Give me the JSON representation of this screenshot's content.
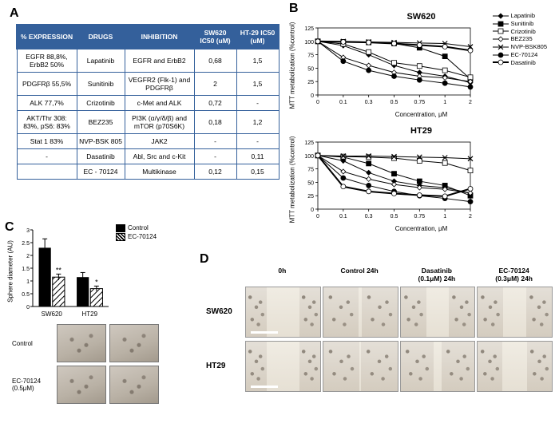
{
  "labels": {
    "A": "A",
    "B": "B",
    "C": "C",
    "D": "D"
  },
  "tableA": {
    "headers": [
      "% EXPRESSION",
      "DRUGS",
      "INHIBITION",
      "SW620 IC50 (uM)",
      "HT-29 IC50 (uM)"
    ],
    "rows": [
      [
        "EGFR 88,8%, ErbB2 50%",
        "Lapatinib",
        "EGFR and ErbB2",
        "0,68",
        "1,5"
      ],
      [
        "PDGFRβ 55,5%",
        "Sunitinib",
        "VEGFR2 (Flk-1) and PDGFRβ",
        "2",
        "1,5"
      ],
      [
        "ALK 77,7%",
        "Crizotinib",
        "c-Met and ALK",
        "0,72",
        "-"
      ],
      [
        "AKT/Thr 308: 83%, pS6: 83%",
        "BEZ235",
        "PI3K (α/γ/δ/β) and mTOR (p70S6K)",
        "0,18",
        "1,2"
      ],
      [
        "Stat 1 83%",
        "NVP-BSK 805",
        "JAK2",
        "-",
        "-"
      ],
      [
        "-",
        "Dasatinib",
        "Abl, Src and c-Kit",
        "-",
        "0,11"
      ],
      [
        "",
        "EC - 70124",
        "Multikinase",
        "0,12",
        "0,15"
      ]
    ],
    "header_bg": "#34609b",
    "header_color": "#ffffff",
    "border_color": "#34609b",
    "font_size": 8.5
  },
  "chartsB": {
    "x_label": "Concentration, μM",
    "y_label": "MTT metabolization (%control)",
    "concentrations": [
      0,
      0.1,
      0.3,
      0.5,
      0.75,
      1,
      2
    ],
    "ylim": [
      0,
      125
    ],
    "ytick_step": 25,
    "drugs": [
      {
        "name": "Lapatinib",
        "marker": "diamond",
        "fill": "#000000"
      },
      {
        "name": "Sunitinib",
        "marker": "square",
        "fill": "#000000"
      },
      {
        "name": "Crizotinib",
        "marker": "square",
        "fill": "#ffffff"
      },
      {
        "name": "BEZ235",
        "marker": "diamond",
        "fill": "#ffffff"
      },
      {
        "name": "NVP-BSK805",
        "marker": "cross",
        "fill": "#000000"
      },
      {
        "name": "EC-70124",
        "marker": "circle",
        "fill": "#000000"
      },
      {
        "name": "Dasatinib",
        "marker": "circle",
        "fill": "#ffffff",
        "thick": true
      }
    ],
    "SW620": {
      "title": "SW620",
      "series": {
        "Lapatinib": [
          100,
          92,
          75,
          55,
          42,
          35,
          23
        ],
        "Sunitinib": [
          100,
          99,
          98,
          96,
          88,
          72,
          30
        ],
        "Crizotinib": [
          100,
          95,
          80,
          60,
          54,
          46,
          33
        ],
        "BEZ235": [
          100,
          70,
          55,
          42,
          35,
          32,
          25
        ],
        "NVP-BSK805": [
          100,
          100,
          99,
          98,
          97,
          96,
          90
        ],
        "EC-70124": [
          100,
          63,
          46,
          35,
          28,
          22,
          15
        ],
        "Dasatinib": [
          100,
          99,
          98,
          96,
          93,
          90,
          83
        ]
      }
    },
    "HT29": {
      "title": "HT29",
      "series": {
        "Lapatinib": [
          100,
          90,
          68,
          52,
          44,
          40,
          30
        ],
        "Sunitinib": [
          100,
          97,
          85,
          66,
          52,
          44,
          25
        ],
        "Crizotinib": [
          100,
          98,
          97,
          95,
          90,
          86,
          72
        ],
        "BEZ235": [
          100,
          70,
          56,
          46,
          40,
          37,
          30
        ],
        "NVP-BSK805": [
          100,
          99,
          99,
          98,
          97,
          96,
          94
        ],
        "EC-70124": [
          100,
          58,
          44,
          33,
          25,
          20,
          14
        ],
        "Dasatinib": [
          100,
          42,
          33,
          29,
          26,
          24,
          38
        ]
      }
    }
  },
  "panelC": {
    "y_label": "Sphere diameter (AU)",
    "categories": [
      "SW620",
      "HT29"
    ],
    "legend": {
      "control": "Control",
      "treated": "EC-70124"
    },
    "control": {
      "values": [
        2.3,
        1.15
      ],
      "err": [
        0.35,
        0.18
      ],
      "color": "#000000"
    },
    "treated": {
      "values": [
        1.15,
        0.7
      ],
      "err": [
        0.12,
        0.1
      ],
      "hatch": true
    },
    "sig": [
      "**",
      "*"
    ],
    "ylim": [
      0,
      3
    ],
    "ytick_step": 0.5,
    "thumb_row_labels": [
      "Control",
      "EC-70124 (0.5μM)"
    ]
  },
  "panelD": {
    "col_labels": [
      "0h",
      "Control 24h",
      "Dasatinib (0.1μM) 24h",
      "EC-70124 (0.3μM) 24h"
    ],
    "row_labels": [
      "SW620",
      "HT29"
    ],
    "gap_fraction": {
      "SW620": [
        0.45,
        0.05,
        0.3,
        0.32
      ],
      "HT29": [
        0.45,
        0.02,
        0.1,
        0.33
      ]
    },
    "scalebar_rows": [
      0,
      1
    ]
  }
}
